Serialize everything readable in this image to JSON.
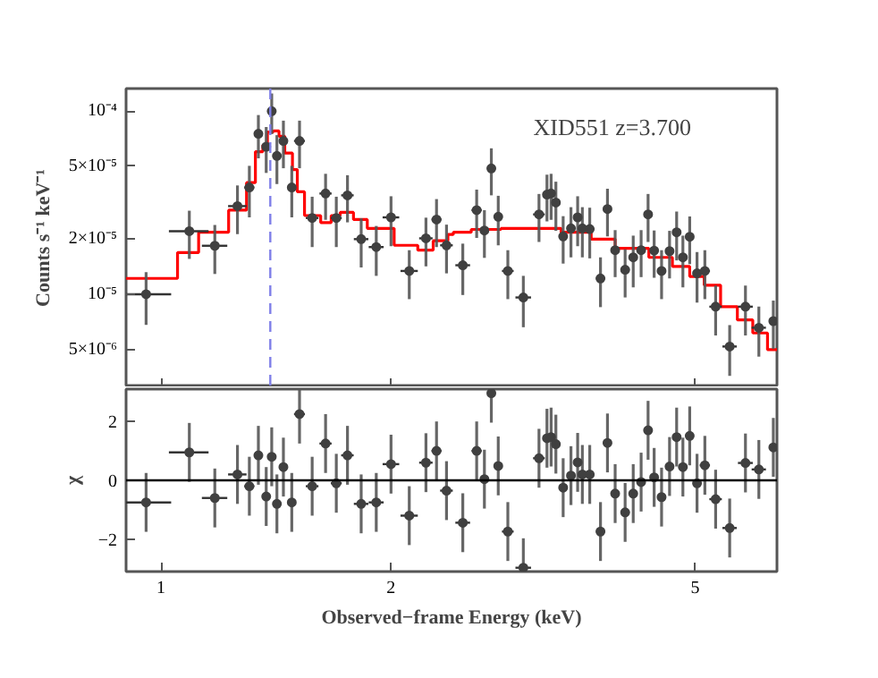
{
  "chart_data": [
    {
      "type": "scatter",
      "log": "xy",
      "tick_labels": "y",
      "xlim": [
        0.9,
        6.4
      ],
      "ylim": [
        3.1e-06,
        0.000133
      ],
      "xticks": [
        1,
        2,
        5
      ],
      "yticks": [
        {
          "value": 5e-06,
          "label": "5×10⁻⁶"
        },
        {
          "value": 1e-05,
          "label": "10⁻⁵"
        },
        {
          "value": 2e-05,
          "label": "2×10⁻⁵"
        },
        {
          "value": 5e-05,
          "label": "5×10⁻⁵"
        },
        {
          "value": 0.0001,
          "label": "10⁻⁴"
        }
      ],
      "ylabel": "Counts s⁻¹ keV⁻¹",
      "annotations": [
        "XID551 z=3.700"
      ],
      "ref_lines": [
        {
          "axis": "x",
          "value": 1.39,
          "color": "#7f7fe8",
          "line_style": "dashed"
        }
      ],
      "series": [
        {
          "marker": "circle",
          "color": "#404040",
          "x": [
            0.956,
            1.089,
            1.176,
            1.259,
            1.305,
            1.341,
            1.373,
            1.396,
            1.418,
            1.446,
            1.483,
            1.518,
            1.577,
            1.642,
            1.696,
            1.754,
            1.828,
            1.913,
            2.0,
            2.113,
            2.222,
            2.294,
            2.364,
            2.483,
            2.589,
            2.65,
            2.706,
            2.763,
            2.844,
            2.98,
            3.124,
            3.2,
            3.24,
            3.287,
            3.36,
            3.44,
            3.51,
            3.56,
            3.64,
            3.76,
            3.84,
            3.93,
            4.05,
            4.15,
            4.25,
            4.34,
            4.42,
            4.52,
            4.63,
            4.73,
            4.82,
            4.92,
            5.03,
            5.15,
            5.32,
            5.55,
            5.82,
            6.06,
            6.33
          ],
          "values": [
            1e-05,
            2.21e-05,
            1.84e-05,
            3.03e-05,
            3.83e-05,
            7.53e-05,
            6.4e-05,
            0.0001,
            5.7e-05,
            6.88e-05,
            3.83e-05,
            6.88e-05,
            2.61e-05,
            3.55e-05,
            2.61e-05,
            3.47e-05,
            2e-05,
            1.81e-05,
            2.63e-05,
            1.34e-05,
            2.02e-05,
            2.56e-05,
            1.85e-05,
            1.44e-05,
            2.88e-05,
            2.23e-05,
            4.87e-05,
            2.65e-05,
            1.34e-05,
            9.6e-06,
            2.73e-05,
            3.5e-05,
            3.55e-05,
            3.17e-05,
            2.07e-05,
            2.29e-05,
            2.63e-05,
            2.29e-05,
            2.27e-05,
            1.22e-05,
            2.92e-05,
            1.74e-05,
            1.36e-05,
            1.59e-05,
            1.74e-05,
            2.73e-05,
            1.73e-05,
            1.34e-05,
            1.72e-05,
            2.18e-05,
            1.59e-05,
            2.06e-05,
            1.3e-05,
            1.34e-05,
            8.55e-06,
            5.18e-06,
            8.55e-06,
            6.56e-06,
            7.13e-06
          ],
          "errors": [
            3.2e-06,
            6.5e-06,
            5.5e-06,
            9e-06,
            1.2e-05,
            2e-05,
            1.8e-05,
            2.5e-05,
            1.7e-05,
            2e-05,
            1.2e-05,
            2e-05,
            8e-06,
            1e-05,
            8e-06,
            1e-05,
            6e-06,
            5.5e-06,
            8e-06,
            4e-06,
            6e-06,
            7.5e-06,
            5.5e-06,
            4.5e-06,
            8.5e-06,
            6.5e-06,
            1.4e-05,
            8e-06,
            4e-06,
            3e-06,
            8e-06,
            1e-05,
            1e-05,
            9.5e-06,
            6e-06,
            7e-06,
            8e-06,
            7e-06,
            7e-06,
            3.7e-06,
            8.5e-06,
            5e-06,
            4e-06,
            5e-06,
            5e-06,
            8e-06,
            5e-06,
            4e-06,
            5e-06,
            6.5e-06,
            5e-06,
            6e-06,
            4e-06,
            4e-06,
            2.6e-06,
            1.6e-06,
            2.6e-06,
            2e-06,
            2.1e-06
          ],
          "xerrors": [
            0.075,
            0.065,
            0.045,
            0.035,
            0.02,
            0.018,
            0.014,
            0.011,
            0.012,
            0.016,
            0.018,
            0.025,
            0.03,
            0.03,
            0.028,
            0.033,
            0.04,
            0.043,
            0.05,
            0.055,
            0.045,
            0.035,
            0.045,
            0.055,
            0.04,
            0.03,
            0.028,
            0.035,
            0.05,
            0.07,
            0.055,
            0.03,
            0.022,
            0.03,
            0.04,
            0.038,
            0.03,
            0.035,
            0.05,
            0.05,
            0.045,
            0.05,
            0.055,
            0.05,
            0.045,
            0.04,
            0.045,
            0.05,
            0.05,
            0.045,
            0.05,
            0.055,
            0.06,
            0.08,
            0.1,
            0.12,
            0.13,
            0.13,
            0.07
          ]
        },
        {
          "type": "step",
          "color": "#ff0000",
          "x": [
            0.9,
            1.051,
            1.12,
            1.226,
            1.294,
            1.329,
            1.359,
            1.378,
            1.403,
            1.427,
            1.452,
            1.486,
            1.508,
            1.541,
            1.618,
            1.67,
            1.716,
            1.786,
            1.862,
            2.019,
            2.168,
            2.271,
            2.374,
            2.413,
            2.547,
            2.786,
            3.339,
            3.656,
            3.93,
            4.35,
            4.67,
            4.92,
            5.14,
            5.4,
            5.68,
            5.95,
            6.22,
            6.4
          ],
          "values": [
            1.22e-05,
            1.69e-05,
            2.18e-05,
            2.88e-05,
            4.07e-05,
            6.01e-05,
            6.52e-05,
            7.7e-05,
            7.8e-05,
            7.3e-05,
            5.9e-05,
            4.8e-05,
            3.63e-05,
            2.69e-05,
            2.46e-05,
            2.69e-05,
            2.8e-05,
            2.56e-05,
            2.29e-05,
            1.85e-05,
            1.74e-05,
            1.96e-05,
            2.12e-05,
            2.18e-05,
            2.26e-05,
            2.29e-05,
            2.18e-05,
            2e-05,
            1.78e-05,
            1.59e-05,
            1.42e-05,
            1.25e-05,
            1.12e-05,
            8.55e-06,
            7.24e-06,
            6.14e-06,
            4.98e-06,
            4.98e-06
          ]
        }
      ]
    },
    {
      "type": "scatter",
      "log": "x",
      "xlim": [
        0.9,
        6.4
      ],
      "ylim": [
        -3.1,
        3.1
      ],
      "xticks": [
        1,
        2,
        5
      ],
      "yticks": [
        {
          "value": -2,
          "label": "−2"
        },
        0,
        2
      ],
      "xlabel": "Observed−frame Energy (keV)",
      "ylabel": "χ",
      "ref_lines": [
        {
          "axis": "y",
          "value": 0,
          "color": "#000000",
          "line_style": "solid"
        }
      ],
      "series": [
        {
          "marker": "circle",
          "color": "#404040",
          "x": [
            0.956,
            1.089,
            1.176,
            1.259,
            1.305,
            1.341,
            1.373,
            1.396,
            1.418,
            1.446,
            1.483,
            1.518,
            1.577,
            1.642,
            1.696,
            1.754,
            1.828,
            1.913,
            2.0,
            2.113,
            2.222,
            2.294,
            2.364,
            2.483,
            2.589,
            2.65,
            2.706,
            2.763,
            2.844,
            2.98,
            3.124,
            3.2,
            3.24,
            3.287,
            3.36,
            3.44,
            3.51,
            3.56,
            3.64,
            3.76,
            3.84,
            3.93,
            4.05,
            4.15,
            4.25,
            4.34,
            4.42,
            4.52,
            4.63,
            4.73,
            4.82,
            4.92,
            5.03,
            5.15,
            5.32,
            5.55,
            5.82,
            6.06,
            6.33
          ],
          "values": [
            -0.75,
            0.95,
            -0.6,
            0.2,
            -0.2,
            0.85,
            -0.55,
            0.8,
            -0.8,
            0.45,
            -0.75,
            2.25,
            -0.2,
            1.25,
            -0.1,
            0.85,
            -0.8,
            -0.75,
            0.55,
            -1.2,
            0.6,
            1.0,
            -0.35,
            -1.44,
            1.0,
            0.04,
            2.96,
            0.49,
            -1.74,
            -2.97,
            0.75,
            1.43,
            1.47,
            1.23,
            -0.25,
            0.16,
            0.61,
            0.2,
            0.2,
            -1.74,
            1.27,
            -0.45,
            -1.09,
            -0.45,
            -0.06,
            1.7,
            0.1,
            -0.57,
            0.47,
            1.47,
            0.45,
            1.51,
            -0.1,
            0.51,
            -0.64,
            -1.62,
            0.59,
            0.37,
            1.12
          ],
          "errors": [
            1,
            1,
            1,
            1,
            1,
            1,
            1,
            1,
            1,
            1,
            1,
            1,
            1,
            1,
            1,
            1,
            1,
            1,
            1,
            1,
            1,
            1,
            1,
            1,
            1,
            1,
            [
              1.96,
              3.1
            ],
            1,
            1,
            [
              -3.1,
              -1.97
            ],
            1,
            1,
            1,
            1,
            1,
            1,
            1,
            1,
            1,
            1,
            1,
            1,
            1,
            1,
            1,
            1,
            1,
            1,
            1,
            1,
            1,
            1,
            1,
            1,
            1,
            1,
            1,
            1,
            1
          ],
          "xerrors": [
            0.075,
            0.065,
            0.045,
            0.035,
            0.02,
            0.018,
            0.014,
            0.011,
            0.012,
            0.016,
            0.018,
            0.025,
            0.03,
            0.03,
            0.028,
            0.033,
            0.04,
            0.043,
            0.05,
            0.055,
            0.045,
            0.035,
            0.045,
            0.055,
            0.04,
            0.03,
            0.028,
            0.035,
            0.05,
            0.07,
            0.055,
            0.03,
            0.022,
            0.03,
            0.04,
            0.038,
            0.03,
            0.035,
            0.05,
            0.05,
            0.045,
            0.05,
            0.055,
            0.05,
            0.045,
            0.04,
            0.045,
            0.05,
            0.05,
            0.045,
            0.05,
            0.055,
            0.06,
            0.08,
            0.1,
            0.12,
            0.13,
            0.13,
            0.07
          ]
        }
      ]
    }
  ]
}
